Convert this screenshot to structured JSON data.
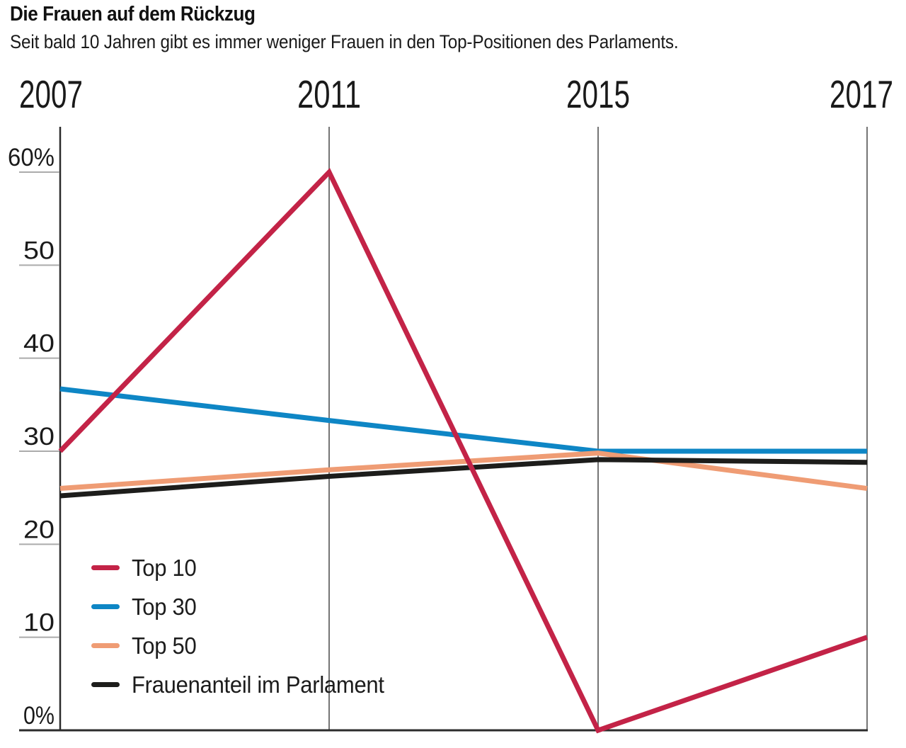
{
  "header": {
    "title": "Die Frauen auf dem Rückzug",
    "subtitle": "Seit bald 10 Jahren gibt es immer weniger Frauen in den Top-Positionen des Parlaments."
  },
  "chart_data": {
    "type": "line",
    "x_labels": [
      "2007",
      "2011",
      "2015",
      "2017"
    ],
    "y_ticks": [
      {
        "value": 60,
        "label": "60%"
      },
      {
        "value": 50,
        "label": "50"
      },
      {
        "value": 40,
        "label": "40"
      },
      {
        "value": 30,
        "label": "30"
      },
      {
        "value": 20,
        "label": "20"
      },
      {
        "value": 10,
        "label": "10"
      },
      {
        "value": 0,
        "label": "0%"
      }
    ],
    "ylim": [
      0,
      60
    ],
    "grid": "vertical-lines-at-years",
    "legend_position": "inside-bottom-left",
    "series": [
      {
        "name": "Top 10",
        "color": "#c32347",
        "values": [
          30,
          60,
          0,
          10
        ]
      },
      {
        "name": "Top 30",
        "color": "#0e86c5",
        "values": [
          36.7,
          33.3,
          30,
          30
        ]
      },
      {
        "name": "Top 50",
        "color": "#ef9c74",
        "values": [
          26,
          28,
          29.8,
          26
        ]
      },
      {
        "name": "Frauenanteil im Parlament",
        "color": "#1d1d1b",
        "values": [
          25.2,
          27.3,
          29.1,
          28.8
        ]
      }
    ]
  },
  "colors": {
    "background": "#ffffff",
    "text": "#1a1a1a",
    "axis": "#2b2b2b",
    "vertical_gridline": "#757575",
    "tick": "#ababab"
  }
}
